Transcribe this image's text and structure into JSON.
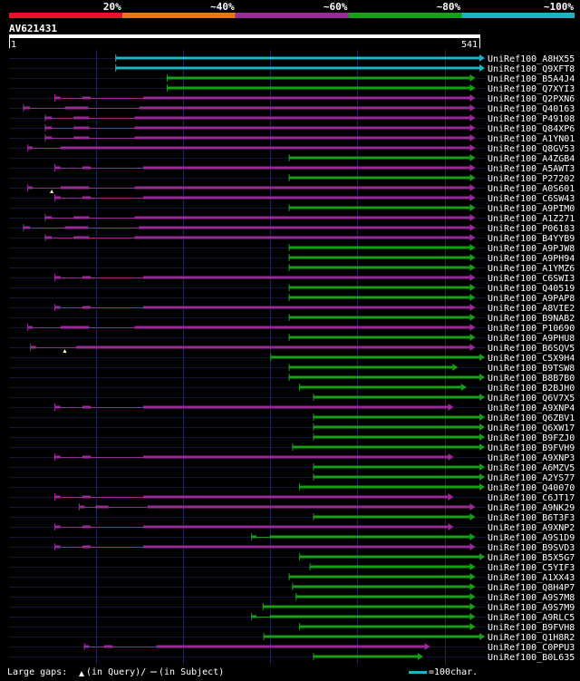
{
  "chart_data": {
    "type": "alignment-overview",
    "query_id": "AV621431",
    "query_start": "1",
    "query_end": "541",
    "query_length": 541,
    "scale_note": "=100char.",
    "legend": {
      "gaps_label": "Large gaps:",
      "query_gap_label": "(in Query)/",
      "subject_gap_label": "(in Subject)"
    },
    "identity_bins": [
      {
        "label": "20%",
        "color": "#e8122a"
      },
      {
        "label": "~40%",
        "color": "#e8761a"
      },
      {
        "label": "~60%",
        "color": "#9a2a9a"
      },
      {
        "label": "~80%",
        "color": "#16a016"
      },
      {
        "label": "~100%",
        "color": "#1ab4c4"
      }
    ],
    "hits": [
      {
        "name": "UniRef100_A8HX55",
        "start": 123,
        "end": 541,
        "bin": 4,
        "gaps": []
      },
      {
        "name": "UniRef100_Q9XFT8",
        "start": 123,
        "end": 541,
        "bin": 4,
        "gaps": []
      },
      {
        "name": "UniRef100_B5A4J4",
        "start": 182,
        "end": 530,
        "bin": 3,
        "gaps": []
      },
      {
        "name": "UniRef100_Q7XYI3",
        "start": 182,
        "end": 530,
        "bin": 3,
        "gaps": []
      },
      {
        "name": "UniRef100_Q2PXN6",
        "start": 53,
        "end": 530,
        "bin": 2,
        "gaps": [
          [
            60,
            85
          ],
          [
            95,
            155
          ]
        ]
      },
      {
        "name": "UniRef100_Q40163",
        "start": 17,
        "end": 530,
        "bin": 2,
        "gaps": [
          [
            25,
            65
          ],
          [
            92,
            150
          ]
        ]
      },
      {
        "name": "UniRef100_P49108",
        "start": 42,
        "end": 530,
        "bin": 2,
        "gaps": [
          [
            50,
            75
          ],
          [
            93,
            145
          ]
        ]
      },
      {
        "name": "UniRef100_Q84XP6",
        "start": 42,
        "end": 530,
        "bin": 2,
        "gaps": [
          [
            50,
            75
          ],
          [
            93,
            145
          ]
        ]
      },
      {
        "name": "UniRef100_A1YN01",
        "start": 42,
        "end": 530,
        "bin": 2,
        "gaps": [
          [
            50,
            75
          ],
          [
            93,
            145
          ]
        ]
      },
      {
        "name": "UniRef100_Q8GV53",
        "start": 22,
        "end": 530,
        "bin": 2,
        "gaps": [
          [
            28,
            60
          ]
        ]
      },
      {
        "name": "UniRef100_A4ZGB4",
        "start": 322,
        "end": 530,
        "bin": 3,
        "gaps": []
      },
      {
        "name": "UniRef100_A5AWT3",
        "start": 53,
        "end": 530,
        "bin": 2,
        "gaps": [
          [
            60,
            85
          ],
          [
            95,
            155
          ]
        ]
      },
      {
        "name": "UniRef100_P27202",
        "start": 322,
        "end": 530,
        "bin": 3,
        "gaps": []
      },
      {
        "name": "UniRef100_A0S601",
        "start": 22,
        "end": 530,
        "bin": 2,
        "gaps": [
          [
            28,
            60
          ],
          [
            93,
            145
          ]
        ],
        "query_gap": 50
      },
      {
        "name": "UniRef100_C6SW43",
        "start": 53,
        "end": 530,
        "bin": 2,
        "gaps": [
          [
            60,
            85
          ],
          [
            95,
            155
          ]
        ]
      },
      {
        "name": "UniRef100_A9PIM0",
        "start": 322,
        "end": 530,
        "bin": 3,
        "gaps": []
      },
      {
        "name": "UniRef100_A1Z271",
        "start": 42,
        "end": 530,
        "bin": 2,
        "gaps": [
          [
            50,
            75
          ],
          [
            93,
            145
          ]
        ]
      },
      {
        "name": "UniRef100_P06183",
        "start": 17,
        "end": 530,
        "bin": 2,
        "gaps": [
          [
            25,
            65
          ],
          [
            92,
            150
          ]
        ]
      },
      {
        "name": "UniRef100_B4YYB9",
        "start": 42,
        "end": 530,
        "bin": 2,
        "gaps": [
          [
            50,
            75
          ],
          [
            93,
            145
          ]
        ]
      },
      {
        "name": "UniRef100_A9PJW8",
        "start": 322,
        "end": 530,
        "bin": 3,
        "gaps": []
      },
      {
        "name": "UniRef100_A9PH94",
        "start": 322,
        "end": 530,
        "bin": 3,
        "gaps": []
      },
      {
        "name": "UniRef100_A1YMZ6",
        "start": 322,
        "end": 530,
        "bin": 3,
        "gaps": []
      },
      {
        "name": "UniRef100_C6SWI3",
        "start": 53,
        "end": 530,
        "bin": 2,
        "gaps": [
          [
            60,
            85
          ],
          [
            95,
            155
          ]
        ]
      },
      {
        "name": "UniRef100_Q40519",
        "start": 322,
        "end": 530,
        "bin": 3,
        "gaps": []
      },
      {
        "name": "UniRef100_A9PAP8",
        "start": 322,
        "end": 530,
        "bin": 3,
        "gaps": []
      },
      {
        "name": "UniRef100_A8VIE2",
        "start": 53,
        "end": 530,
        "bin": 2,
        "gaps": [
          [
            60,
            85
          ],
          [
            95,
            155
          ]
        ]
      },
      {
        "name": "UniRef100_B9NAB2",
        "start": 322,
        "end": 530,
        "bin": 3,
        "gaps": []
      },
      {
        "name": "UniRef100_P10690",
        "start": 22,
        "end": 530,
        "bin": 2,
        "gaps": [
          [
            28,
            60
          ],
          [
            93,
            145
          ]
        ]
      },
      {
        "name": "UniRef100_A9PHU8",
        "start": 322,
        "end": 530,
        "bin": 3,
        "gaps": []
      },
      {
        "name": "UniRef100_B6SQV5",
        "start": 25,
        "end": 530,
        "bin": 2,
        "gaps": [
          [
            32,
            78
          ]
        ],
        "query_gap": 65
      },
      {
        "name": "UniRef100_C5X9H4",
        "start": 301,
        "end": 541,
        "bin": 3,
        "gaps": []
      },
      {
        "name": "UniRef100_B9TSW8",
        "start": 322,
        "end": 510,
        "bin": 3,
        "gaps": []
      },
      {
        "name": "UniRef100_B8B7B0",
        "start": 322,
        "end": 541,
        "bin": 3,
        "gaps": []
      },
      {
        "name": "UniRef100_B2BJH0",
        "start": 334,
        "end": 520,
        "bin": 3,
        "gaps": []
      },
      {
        "name": "UniRef100_Q6V7X5",
        "start": 350,
        "end": 541,
        "bin": 3,
        "gaps": []
      },
      {
        "name": "UniRef100_A9XNP4",
        "start": 53,
        "end": 505,
        "bin": 2,
        "gaps": [
          [
            60,
            85
          ],
          [
            95,
            155
          ]
        ]
      },
      {
        "name": "UniRef100_Q6ZBV1",
        "start": 350,
        "end": 541,
        "bin": 3,
        "gaps": []
      },
      {
        "name": "UniRef100_Q6XW17",
        "start": 350,
        "end": 541,
        "bin": 3,
        "gaps": []
      },
      {
        "name": "UniRef100_B9FZJ0",
        "start": 350,
        "end": 541,
        "bin": 3,
        "gaps": []
      },
      {
        "name": "UniRef100_B9FVH9",
        "start": 326,
        "end": 541,
        "bin": 3,
        "gaps": []
      },
      {
        "name": "UniRef100_A9XNP3",
        "start": 53,
        "end": 505,
        "bin": 2,
        "gaps": [
          [
            60,
            85
          ],
          [
            95,
            155
          ]
        ]
      },
      {
        "name": "UniRef100_A6MZV5",
        "start": 350,
        "end": 541,
        "bin": 3,
        "gaps": []
      },
      {
        "name": "UniRef100_A2YS77",
        "start": 350,
        "end": 541,
        "bin": 3,
        "gaps": []
      },
      {
        "name": "UniRef100_Q40070",
        "start": 334,
        "end": 541,
        "bin": 3,
        "gaps": []
      },
      {
        "name": "UniRef100_C6JT17",
        "start": 53,
        "end": 505,
        "bin": 2,
        "gaps": [
          [
            60,
            85
          ],
          [
            95,
            155
          ]
        ]
      },
      {
        "name": "UniRef100_A9NK29",
        "start": 81,
        "end": 530,
        "bin": 2,
        "gaps": [
          [
            88,
            100
          ],
          [
            115,
            160
          ]
        ]
      },
      {
        "name": "UniRef100_B6T3F3",
        "start": 350,
        "end": 530,
        "bin": 3,
        "gaps": []
      },
      {
        "name": "UniRef100_A9XNP2",
        "start": 53,
        "end": 505,
        "bin": 2,
        "gaps": [
          [
            60,
            85
          ],
          [
            95,
            155
          ]
        ]
      },
      {
        "name": "UniRef100_A9S1D9",
        "start": 279,
        "end": 530,
        "bin": 3,
        "gaps": [
          [
            285,
            300
          ]
        ]
      },
      {
        "name": "UniRef100_B9SVD3",
        "start": 53,
        "end": 530,
        "bin": 2,
        "gaps": [
          [
            60,
            85
          ],
          [
            95,
            155
          ]
        ]
      },
      {
        "name": "UniRef100_B5X5G7",
        "start": 334,
        "end": 541,
        "bin": 3,
        "gaps": []
      },
      {
        "name": "UniRef100_C5YIF3",
        "start": 346,
        "end": 530,
        "bin": 3,
        "gaps": []
      },
      {
        "name": "UniRef100_A1XX43",
        "start": 322,
        "end": 530,
        "bin": 3,
        "gaps": []
      },
      {
        "name": "UniRef100_Q8H4P7",
        "start": 326,
        "end": 530,
        "bin": 3,
        "gaps": []
      },
      {
        "name": "UniRef100_A9S7M8",
        "start": 330,
        "end": 530,
        "bin": 3,
        "gaps": []
      },
      {
        "name": "UniRef100_A9S7M9",
        "start": 292,
        "end": 530,
        "bin": 3,
        "gaps": []
      },
      {
        "name": "UniRef100_A9RLC5",
        "start": 279,
        "end": 530,
        "bin": 3,
        "gaps": [
          [
            285,
            300
          ]
        ]
      },
      {
        "name": "UniRef100_B9FVH8",
        "start": 334,
        "end": 530,
        "bin": 3,
        "gaps": []
      },
      {
        "name": "UniRef100_Q1H8R2",
        "start": 293,
        "end": 541,
        "bin": 3,
        "gaps": []
      },
      {
        "name": "UniRef100_C0PPU3",
        "start": 87,
        "end": 478,
        "bin": 2,
        "gaps": [
          [
            93,
            110
          ],
          [
            120,
            170
          ]
        ]
      },
      {
        "name": "UniRef100_B0L635",
        "start": 350,
        "end": 470,
        "bin": 3,
        "gaps": []
      }
    ]
  }
}
